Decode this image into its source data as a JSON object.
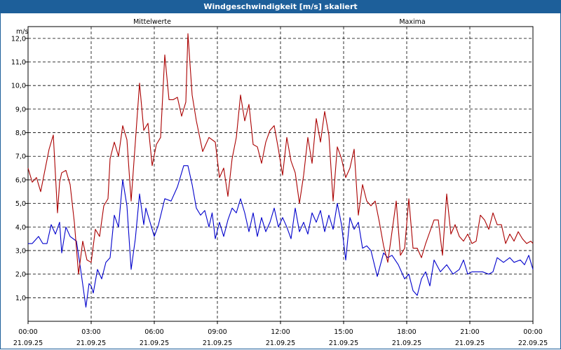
{
  "window": {
    "title": "Windgeschwindigkeit [m/s] skaliert"
  },
  "chart_data": {
    "type": "line",
    "title": "Windgeschwindigkeit [m/s] skaliert",
    "ylabel": "m/s",
    "ylim": [
      0,
      12.5
    ],
    "xlim_hours": [
      0,
      24
    ],
    "grid": true,
    "y_ticks": [
      "1,0",
      "2,0",
      "3,0",
      "4,0",
      "5,0",
      "6,0",
      "7,0",
      "8,0",
      "9,0",
      "10,0",
      "11,0",
      "12,0"
    ],
    "x_ticks": [
      {
        "time": "00:00",
        "date": "21.09.25"
      },
      {
        "time": "03:00",
        "date": "21.09.25"
      },
      {
        "time": "06:00",
        "date": "21.09.25"
      },
      {
        "time": "09:00",
        "date": "21.09.25"
      },
      {
        "time": "12:00",
        "date": "21.09.25"
      },
      {
        "time": "15:00",
        "date": "21.09.25"
      },
      {
        "time": "18:00",
        "date": "21.09.25"
      },
      {
        "time": "21:00",
        "date": "21.09.25"
      },
      {
        "time": "00:00",
        "date": "22.09.25"
      }
    ],
    "series": [
      {
        "name": "Mittelwerte",
        "color": "#0000cc",
        "x": [
          0,
          0.2,
          0.5,
          0.7,
          0.9,
          1.1,
          1.3,
          1.5,
          1.6,
          1.8,
          2.0,
          2.3,
          2.5,
          2.75,
          2.9,
          3.0,
          3.1,
          3.3,
          3.5,
          3.7,
          3.9,
          4.1,
          4.3,
          4.5,
          4.7,
          4.9,
          5.1,
          5.3,
          5.5,
          5.6,
          5.8,
          6.0,
          6.2,
          6.5,
          6.8,
          7.1,
          7.4,
          7.6,
          7.8,
          8.0,
          8.2,
          8.4,
          8.6,
          8.75,
          8.9,
          9.1,
          9.3,
          9.5,
          9.7,
          9.9,
          10.1,
          10.3,
          10.5,
          10.7,
          10.9,
          11.1,
          11.3,
          11.5,
          11.7,
          11.9,
          12.1,
          12.3,
          12.5,
          12.7,
          12.9,
          13.1,
          13.3,
          13.5,
          13.7,
          13.9,
          14.1,
          14.3,
          14.5,
          14.7,
          14.9,
          15.1,
          15.3,
          15.5,
          15.7,
          15.9,
          16.1,
          16.3,
          16.6,
          16.9,
          17.1,
          17.3,
          17.6,
          17.9,
          18.1,
          18.3,
          18.5,
          18.7,
          18.9,
          19.1,
          19.3,
          19.6,
          19.9,
          20.2,
          20.5,
          20.7,
          20.9,
          21.1,
          21.3,
          21.6,
          21.9,
          22.1,
          22.3,
          22.6,
          22.9,
          23.1,
          23.4,
          23.6,
          23.8,
          24.0
        ],
        "values": [
          3.3,
          3.3,
          3.6,
          3.3,
          3.3,
          4.1,
          3.7,
          4.2,
          2.9,
          4.0,
          3.6,
          3.4,
          2.2,
          0.6,
          1.6,
          1.5,
          1.2,
          2.2,
          1.8,
          2.5,
          2.7,
          4.5,
          4.0,
          6.0,
          4.9,
          2.2,
          3.5,
          5.4,
          4.1,
          4.8,
          4.2,
          3.6,
          4.1,
          5.2,
          5.1,
          5.7,
          6.6,
          6.6,
          5.8,
          4.8,
          4.5,
          4.7,
          4.0,
          4.6,
          3.5,
          4.2,
          3.6,
          4.3,
          4.8,
          4.6,
          5.2,
          4.6,
          3.8,
          4.6,
          3.6,
          4.4,
          3.8,
          4.2,
          4.8,
          4.0,
          4.4,
          4.0,
          3.5,
          4.8,
          3.8,
          4.2,
          3.7,
          4.6,
          4.2,
          4.7,
          3.8,
          4.5,
          3.9,
          5.0,
          4.1,
          2.6,
          4.4,
          3.9,
          4.2,
          3.1,
          3.2,
          3.0,
          1.9,
          2.9,
          2.7,
          2.8,
          2.4,
          1.8,
          2.0,
          1.3,
          1.1,
          1.8,
          2.1,
          1.5,
          2.6,
          2.1,
          2.4,
          2.0,
          2.2,
          2.6,
          2.0,
          2.1,
          2.1,
          2.1,
          2.0,
          2.1,
          2.7,
          2.5,
          2.7,
          2.5,
          2.6,
          2.4,
          2.8,
          2.2
        ]
      },
      {
        "name": "Maxima",
        "color": "#aa0000",
        "x": [
          0,
          0.2,
          0.4,
          0.6,
          0.8,
          1.0,
          1.2,
          1.4,
          1.5,
          1.6,
          1.8,
          2.0,
          2.2,
          2.4,
          2.6,
          2.8,
          3.0,
          3.2,
          3.4,
          3.6,
          3.8,
          3.9,
          4.1,
          4.3,
          4.5,
          4.7,
          4.9,
          5.1,
          5.3,
          5.5,
          5.7,
          5.9,
          6.1,
          6.3,
          6.5,
          6.7,
          6.9,
          7.1,
          7.3,
          7.5,
          7.6,
          7.8,
          8.0,
          8.3,
          8.6,
          8.9,
          9.1,
          9.3,
          9.5,
          9.7,
          9.9,
          10.1,
          10.3,
          10.5,
          10.7,
          10.9,
          11.1,
          11.3,
          11.5,
          11.7,
          11.9,
          12.1,
          12.3,
          12.5,
          12.7,
          12.9,
          13.1,
          13.3,
          13.5,
          13.7,
          13.9,
          14.1,
          14.3,
          14.5,
          14.7,
          14.9,
          15.1,
          15.3,
          15.5,
          15.7,
          15.9,
          16.1,
          16.3,
          16.5,
          16.7,
          16.9,
          17.1,
          17.3,
          17.5,
          17.7,
          17.9,
          18.1,
          18.3,
          18.5,
          18.7,
          18.9,
          19.1,
          19.3,
          19.5,
          19.7,
          19.9,
          20.1,
          20.3,
          20.5,
          20.7,
          20.9,
          21.1,
          21.3,
          21.5,
          21.7,
          21.9,
          22.1,
          22.3,
          22.5,
          22.7,
          22.9,
          23.1,
          23.3,
          23.5,
          23.7,
          23.9,
          24.0
        ],
        "values": [
          6.5,
          5.9,
          6.1,
          5.5,
          6.4,
          7.3,
          7.9,
          4.6,
          5.9,
          6.3,
          6.4,
          5.8,
          4.2,
          2.0,
          3.4,
          2.6,
          2.5,
          3.9,
          3.6,
          4.9,
          5.2,
          6.9,
          7.6,
          7.0,
          8.3,
          7.7,
          5.1,
          7.6,
          10.1,
          8.1,
          8.4,
          6.6,
          7.5,
          7.8,
          11.3,
          9.4,
          9.4,
          9.5,
          8.7,
          9.3,
          12.2,
          9.6,
          8.5,
          7.2,
          7.8,
          7.6,
          6.1,
          6.5,
          5.3,
          6.9,
          7.8,
          9.6,
          8.5,
          9.2,
          7.5,
          7.4,
          6.7,
          7.6,
          8.1,
          8.3,
          7.3,
          6.2,
          7.8,
          6.8,
          6.3,
          5.0,
          6.2,
          7.8,
          6.7,
          8.6,
          7.6,
          8.9,
          7.9,
          5.1,
          7.4,
          6.9,
          6.1,
          6.5,
          7.3,
          4.5,
          5.8,
          5.1,
          4.9,
          5.1,
          4.2,
          3.2,
          2.5,
          3.8,
          5.1,
          2.8,
          3.1,
          5.2,
          3.1,
          3.1,
          2.7,
          3.3,
          3.8,
          4.3,
          4.3,
          2.8,
          5.4,
          3.7,
          4.1,
          3.6,
          3.4,
          3.7,
          3.3,
          3.4,
          4.5,
          4.3,
          3.9,
          4.6,
          4.1,
          4.1,
          3.3,
          3.7,
          3.4,
          3.8,
          3.5,
          3.3,
          3.4,
          3.3
        ]
      }
    ]
  }
}
